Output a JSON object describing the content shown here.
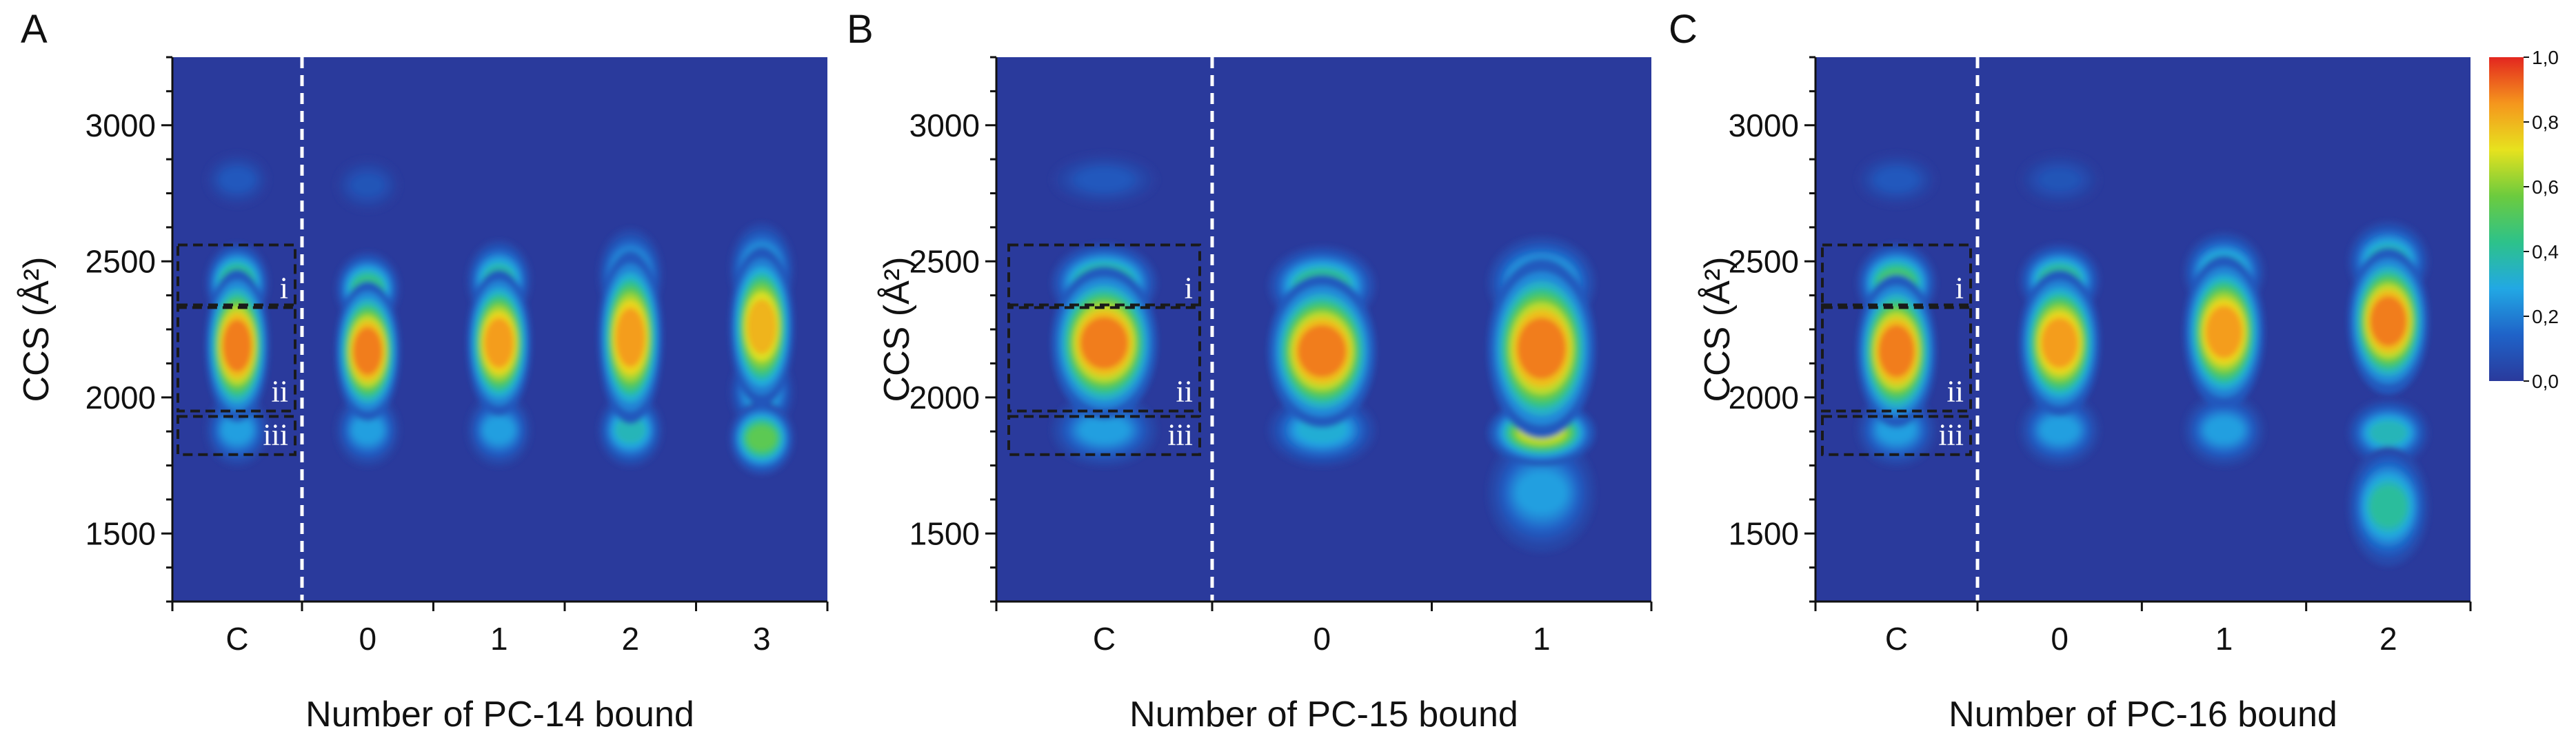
{
  "colors": {
    "background": "#2a3a9c",
    "colormap": [
      "#2a3a9c",
      "#1f63c8",
      "#22a8e4",
      "#2dc28a",
      "#6ccb3e",
      "#e7e21e",
      "#f5961d",
      "#e3261f"
    ],
    "boxes": "#1a1a1a",
    "divider": "#ffffff",
    "roman": "#ffffff"
  },
  "colorbar": {
    "ticks": [
      "1,0",
      "0,8",
      "0,6",
      "0,4",
      "0,2",
      "0,0"
    ]
  },
  "chart_data": [
    {
      "panel": "A",
      "type": "heatmap",
      "xlabel": "Number of PC-14 bound",
      "ylabel": "CCS (Å²)",
      "categories": [
        "C",
        "0",
        "1",
        "2",
        "3"
      ],
      "yticks": [
        "1500",
        "2000",
        "2500",
        "3000"
      ],
      "ylim": [
        1250,
        3250
      ],
      "region_labels": [
        "i",
        "ii",
        "iii"
      ],
      "regions_ccs": [
        [
          2330,
          2560
        ],
        [
          1950,
          2340
        ],
        [
          1790,
          1930
        ]
      ],
      "columns": [
        {
          "peaks": [
            {
              "ccs": 2190,
              "intensity": 1.0,
              "sigma": 115
            },
            {
              "ccs": 2420,
              "intensity": 0.55,
              "sigma": 60
            },
            {
              "ccs": 1880,
              "intensity": 0.3,
              "sigma": 55
            },
            {
              "ccs": 2800,
              "intensity": 0.12,
              "sigma": 40
            }
          ]
        },
        {
          "peaks": [
            {
              "ccs": 2170,
              "intensity": 1.0,
              "sigma": 105
            },
            {
              "ccs": 2400,
              "intensity": 0.5,
              "sigma": 55
            },
            {
              "ccs": 1880,
              "intensity": 0.3,
              "sigma": 55
            },
            {
              "ccs": 2780,
              "intensity": 0.1,
              "sigma": 40
            }
          ]
        },
        {
          "peaks": [
            {
              "ccs": 2200,
              "intensity": 0.95,
              "sigma": 110
            },
            {
              "ccs": 2430,
              "intensity": 0.45,
              "sigma": 60
            },
            {
              "ccs": 1880,
              "intensity": 0.3,
              "sigma": 55
            }
          ]
        },
        {
          "peaks": [
            {
              "ccs": 2220,
              "intensity": 0.95,
              "sigma": 130
            },
            {
              "ccs": 2450,
              "intensity": 0.4,
              "sigma": 70
            },
            {
              "ccs": 1880,
              "intensity": 0.4,
              "sigma": 55
            }
          ]
        },
        {
          "peaks": [
            {
              "ccs": 2260,
              "intensity": 0.9,
              "sigma": 120
            },
            {
              "ccs": 2470,
              "intensity": 0.4,
              "sigma": 70
            },
            {
              "ccs": 1850,
              "intensity": 0.6,
              "sigma": 55
            },
            {
              "ccs": 2020,
              "intensity": 0.35,
              "sigma": 60
            }
          ]
        }
      ]
    },
    {
      "panel": "B",
      "type": "heatmap",
      "xlabel": "Number of PC-15 bound",
      "ylabel": "CCS (Å²)",
      "categories": [
        "C",
        "0",
        "1"
      ],
      "yticks": [
        "1500",
        "2000",
        "2500",
        "3000"
      ],
      "ylim": [
        1250,
        3250
      ],
      "region_labels": [
        "i",
        "ii",
        "iii"
      ],
      "regions_ccs": [
        [
          2330,
          2560
        ],
        [
          1950,
          2340
        ],
        [
          1790,
          1930
        ]
      ],
      "columns": [
        {
          "peaks": [
            {
              "ccs": 2200,
              "intensity": 1.0,
              "sigma": 115
            },
            {
              "ccs": 2420,
              "intensity": 0.55,
              "sigma": 60
            },
            {
              "ccs": 1880,
              "intensity": 0.3,
              "sigma": 55
            },
            {
              "ccs": 2800,
              "intensity": 0.12,
              "sigma": 40
            }
          ]
        },
        {
          "peaks": [
            {
              "ccs": 2170,
              "intensity": 1.0,
              "sigma": 115
            },
            {
              "ccs": 2410,
              "intensity": 0.5,
              "sigma": 60
            },
            {
              "ccs": 1880,
              "intensity": 0.35,
              "sigma": 55
            }
          ]
        },
        {
          "peaks": [
            {
              "ccs": 2180,
              "intensity": 1.0,
              "sigma": 135
            },
            {
              "ccs": 2420,
              "intensity": 0.45,
              "sigma": 70
            },
            {
              "ccs": 1870,
              "intensity": 0.75,
              "sigma": 50
            },
            {
              "ccs": 1650,
              "intensity": 0.3,
              "sigma": 90
            }
          ]
        }
      ]
    },
    {
      "panel": "C",
      "type": "heatmap",
      "xlabel": "Number of PC-16 bound",
      "ylabel": "CCS (Å²)",
      "categories": [
        "C",
        "0",
        "1",
        "2"
      ],
      "yticks": [
        "1500",
        "2000",
        "2500",
        "3000"
      ],
      "ylim": [
        1250,
        3250
      ],
      "region_labels": [
        "i",
        "ii",
        "iii"
      ],
      "regions_ccs": [
        [
          2330,
          2560
        ],
        [
          1950,
          2340
        ],
        [
          1790,
          1930
        ]
      ],
      "columns": [
        {
          "peaks": [
            {
              "ccs": 2170,
              "intensity": 1.0,
              "sigma": 115
            },
            {
              "ccs": 2420,
              "intensity": 0.55,
              "sigma": 60
            },
            {
              "ccs": 1880,
              "intensity": 0.3,
              "sigma": 55
            },
            {
              "ccs": 2800,
              "intensity": 0.12,
              "sigma": 40
            }
          ]
        },
        {
          "peaks": [
            {
              "ccs": 2200,
              "intensity": 0.95,
              "sigma": 110
            },
            {
              "ccs": 2430,
              "intensity": 0.5,
              "sigma": 55
            },
            {
              "ccs": 1880,
              "intensity": 0.3,
              "sigma": 55
            },
            {
              "ccs": 2800,
              "intensity": 0.1,
              "sigma": 40
            }
          ]
        },
        {
          "peaks": [
            {
              "ccs": 2240,
              "intensity": 0.95,
              "sigma": 115
            },
            {
              "ccs": 2460,
              "intensity": 0.45,
              "sigma": 60
            },
            {
              "ccs": 1880,
              "intensity": 0.3,
              "sigma": 55
            }
          ]
        },
        {
          "peaks": [
            {
              "ccs": 2280,
              "intensity": 1.0,
              "sigma": 110
            },
            {
              "ccs": 2500,
              "intensity": 0.45,
              "sigma": 60
            },
            {
              "ccs": 1870,
              "intensity": 0.4,
              "sigma": 50
            },
            {
              "ccs": 1600,
              "intensity": 0.45,
              "sigma": 90
            }
          ]
        }
      ]
    }
  ]
}
